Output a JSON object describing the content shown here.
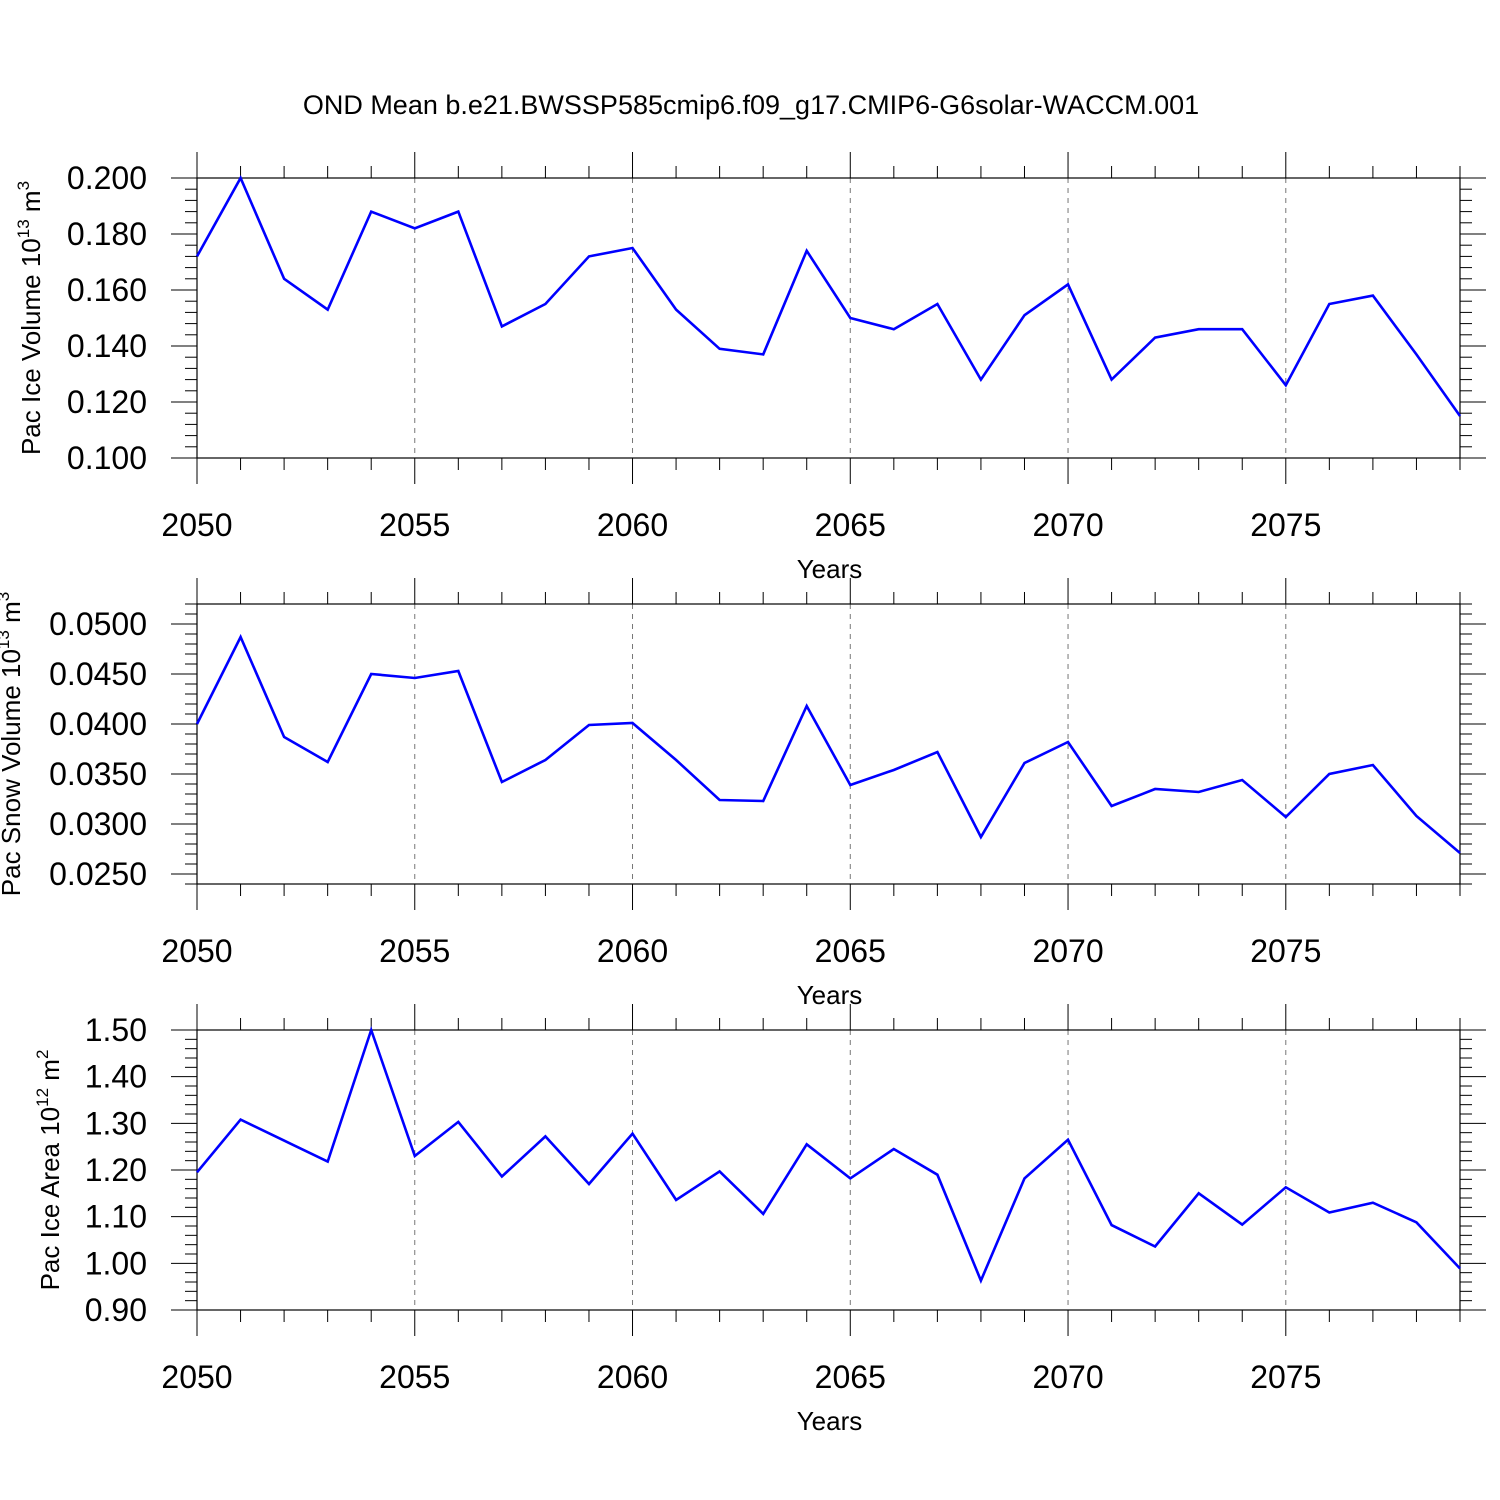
{
  "title": "OND Mean b.e21.BWSSP585cmip6.f09_g17.CMIP6-G6solar-WACCM.001",
  "chart_data": [
    {
      "type": "line",
      "xlabel": "Years",
      "ylabel": {
        "text": "Pac Ice Volume 10",
        "exp": "13",
        "unit": " m",
        "unit_exp": "3"
      },
      "xlim": [
        2050,
        2079
      ],
      "ylim": [
        0.1,
        0.2
      ],
      "xticks": [
        "2050",
        "2055",
        "2060",
        "2065",
        "2070",
        "2075"
      ],
      "yticks": [
        "0.100",
        "0.120",
        "0.140",
        "0.160",
        "0.180",
        "0.200"
      ],
      "line_color": "#0000ff",
      "x": [
        2050,
        2051,
        2052,
        2053,
        2054,
        2055,
        2056,
        2057,
        2058,
        2059,
        2060,
        2061,
        2062,
        2063,
        2064,
        2065,
        2066,
        2067,
        2068,
        2069,
        2070,
        2071,
        2072,
        2073,
        2074,
        2075,
        2076,
        2077,
        2078,
        2079
      ],
      "values": [
        0.172,
        0.2,
        0.164,
        0.153,
        0.188,
        0.182,
        0.188,
        0.147,
        0.155,
        0.172,
        0.175,
        0.153,
        0.139,
        0.137,
        0.174,
        0.15,
        0.146,
        0.155,
        0.128,
        0.151,
        0.162,
        0.128,
        0.143,
        0.146,
        0.146,
        0.126,
        0.155,
        0.158,
        0.137,
        0.115
      ]
    },
    {
      "type": "line",
      "xlabel": "Years",
      "ylabel": {
        "text": "Pac Snow Volume 10",
        "exp": "13",
        "unit": " m",
        "unit_exp": "3"
      },
      "xlim": [
        2050,
        2079
      ],
      "ylim": [
        0.024,
        0.052
      ],
      "xticks": [
        "2050",
        "2055",
        "2060",
        "2065",
        "2070",
        "2075"
      ],
      "yticks": [
        "0.0250",
        "0.0300",
        "0.0350",
        "0.0400",
        "0.0450",
        "0.0500"
      ],
      "line_color": "#0000ff",
      "x": [
        2050,
        2051,
        2052,
        2053,
        2054,
        2055,
        2056,
        2057,
        2058,
        2059,
        2060,
        2061,
        2062,
        2063,
        2064,
        2065,
        2066,
        2067,
        2068,
        2069,
        2070,
        2071,
        2072,
        2073,
        2074,
        2075,
        2076,
        2077,
        2078,
        2079
      ],
      "values": [
        0.04,
        0.0487,
        0.0387,
        0.0362,
        0.045,
        0.0446,
        0.0453,
        0.0342,
        0.0364,
        0.0399,
        0.0401,
        0.0364,
        0.0324,
        0.0323,
        0.0418,
        0.0339,
        0.0354,
        0.0372,
        0.0287,
        0.0361,
        0.0382,
        0.0318,
        0.0335,
        0.0332,
        0.0344,
        0.0307,
        0.035,
        0.0359,
        0.0308,
        0.0271
      ]
    },
    {
      "type": "line",
      "xlabel": "Years",
      "ylabel": {
        "text": "Pac Ice Area 10",
        "exp": "12",
        "unit": " m",
        "unit_exp": "2"
      },
      "xlim": [
        2050,
        2079
      ],
      "ylim": [
        0.9,
        1.5
      ],
      "xticks": [
        "2050",
        "2055",
        "2060",
        "2065",
        "2070",
        "2075"
      ],
      "yticks": [
        "0.90",
        "1.00",
        "1.10",
        "1.20",
        "1.30",
        "1.40",
        "1.50"
      ],
      "line_color": "#0000ff",
      "x": [
        2050,
        2051,
        2052,
        2053,
        2054,
        2055,
        2056,
        2057,
        2058,
        2059,
        2060,
        2061,
        2062,
        2063,
        2064,
        2065,
        2066,
        2067,
        2068,
        2069,
        2070,
        2071,
        2072,
        2073,
        2074,
        2075,
        2076,
        2077,
        2078,
        2079
      ],
      "values": [
        1.195,
        1.308,
        1.263,
        1.218,
        1.5,
        1.23,
        1.303,
        1.186,
        1.272,
        1.17,
        1.278,
        1.136,
        1.197,
        1.106,
        1.255,
        1.182,
        1.245,
        1.19,
        0.963,
        1.182,
        1.265,
        1.082,
        1.036,
        1.15,
        1.083,
        1.163,
        1.109,
        1.13,
        1.088,
        0.989
      ]
    }
  ]
}
